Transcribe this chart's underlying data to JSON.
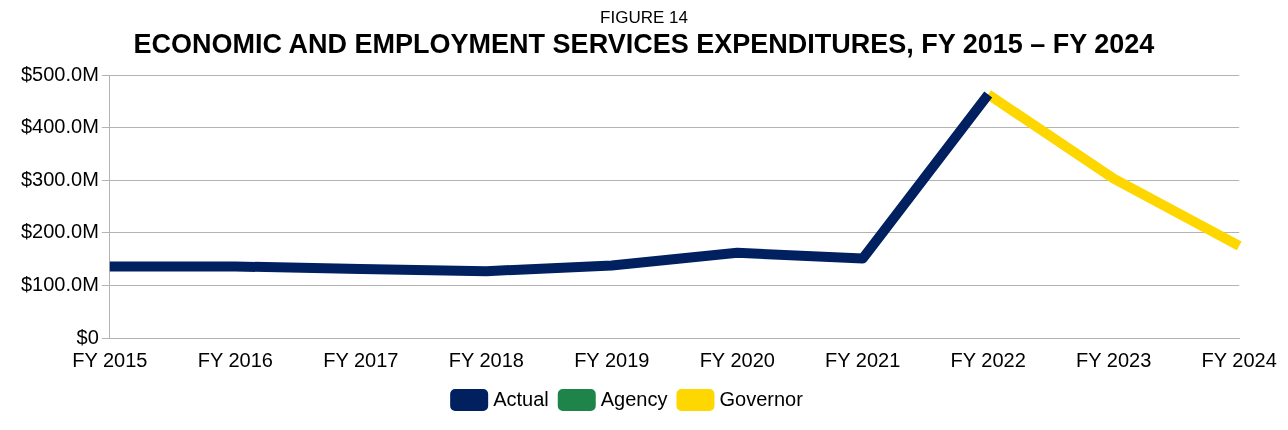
{
  "chart_data": {
    "type": "line",
    "title": "ECONOMIC AND EMPLOYMENT SERVICES EXPENDITURES, FY 2015 – FY 2024",
    "subtitle": "FIGURE 14",
    "categories": [
      "FY 2015",
      "FY 2016",
      "FY 2017",
      "FY 2018",
      "FY 2019",
      "FY 2020",
      "FY 2021",
      "FY 2022",
      "FY 2023",
      "FY 2024"
    ],
    "series": [
      {
        "name": "Actual",
        "color": "#002060",
        "values": [
          136,
          136,
          131,
          127,
          138,
          162,
          151,
          463,
          null,
          null
        ]
      },
      {
        "name": "Agency",
        "color": "#1e8449",
        "values": [
          null,
          null,
          null,
          null,
          null,
          null,
          null,
          null,
          null,
          null
        ]
      },
      {
        "name": "Governor",
        "color": "#ffd700",
        "values": [
          null,
          null,
          null,
          null,
          null,
          null,
          null,
          463,
          303,
          175
        ]
      }
    ],
    "ylim": [
      0,
      500
    ],
    "yticks": [
      {
        "value": 0,
        "label": "$0"
      },
      {
        "value": 100,
        "label": "$100.0M"
      },
      {
        "value": 200,
        "label": "$200.0M"
      },
      {
        "value": 300,
        "label": "$300.0M"
      },
      {
        "value": 400,
        "label": "$400.0M"
      },
      {
        "value": 500,
        "label": "$500.0M"
      }
    ],
    "grid": "y",
    "legend": "bottom",
    "marker": "none",
    "line_style": "solid"
  }
}
